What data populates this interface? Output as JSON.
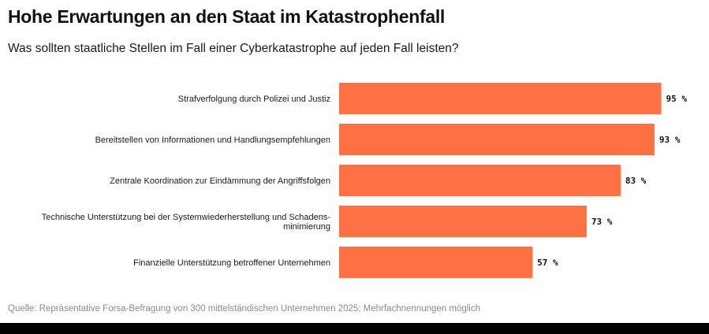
{
  "header": {
    "title": "Hohe Erwartungen an den Staat im Katastrophenfall",
    "subtitle": "Was sollten staatliche Stellen im Fall einer Cyberkatastrophe auf jeden Fall leisten?"
  },
  "chart_data": {
    "type": "bar",
    "orientation": "horizontal",
    "title": "Hohe Erwartungen an den Staat im Katastrophenfall",
    "subtitle": "Was sollten staatliche Stellen im Fall einer Cyberkatastrophe auf jeden Fall leisten?",
    "categories": [
      [
        "Strafverfolgung durch Polizei und Justiz"
      ],
      [
        "Bereitstellen von Informationen und Handlungsempfehlungen"
      ],
      [
        "Zentrale Koordination zur Eindämmung der Angriffsfolgen"
      ],
      [
        "Technische Unterstützung bei der Systemwiederherstellung und Schadens-",
        "minimierung"
      ],
      [
        "Finanzielle Unterstützung betroffener Unternehmen"
      ]
    ],
    "values": [
      95,
      93,
      83,
      73,
      57
    ],
    "value_labels": [
      "95 %",
      "93 %",
      "83 %",
      "73 %",
      "57 %"
    ],
    "unit": "%",
    "xlim": [
      0,
      100
    ],
    "bar_color": "#ff7043",
    "grid": false
  },
  "footer": {
    "source": "Quelle: Repräsentative Forsa-Befragung von 300 mittelständischen Unternehmen 2025; Mehrfachnennungen möglich"
  }
}
